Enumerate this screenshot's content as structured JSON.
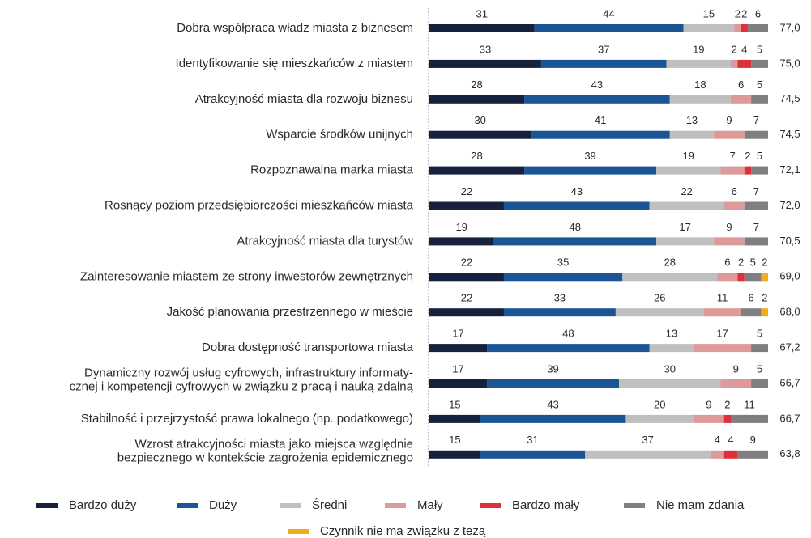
{
  "chart_data": {
    "type": "stacked-bar-horizontal",
    "categories": [
      "Dobra współpraca władz miasta z biznesem",
      "Identyfikowanie się mieszkańców z miastem",
      "Atrakcyjność miasta dla rozwoju biznesu",
      "Wsparcie środków unijnych",
      "Rozpoznawalna marka miasta",
      "Rosnący poziom przedsiębiorczości mieszkańców miasta",
      "Atrakcyjność miasta dla turystów",
      "Zainteresowanie miastem ze strony inwestorów zewnętrznych",
      "Jakość planowania przestrzennego w mieście",
      "Dobra dostępność transportowa miasta",
      "Dynamiczny rozwój usług cyfrowych, infrastruktury informaty-\ncznej i kompetencji cyfrowych w związku z pracą i nauką zdalną",
      "Stabilność i przejrzystość prawa lokalnego (np. podatkowego)",
      "Wzrost atrakcyjności miasta jako miejsca względnie\nbezpiecznego w kontekście zagrożenia epidemicznego"
    ],
    "xlim": [
      0,
      100
    ],
    "series": [
      {
        "name": "Bardzo duży",
        "color": "#16213d",
        "values": [
          31,
          33,
          28,
          30,
          28,
          22,
          19,
          22,
          22,
          17,
          17,
          15,
          15
        ]
      },
      {
        "name": "Duży",
        "color": "#1c5596",
        "values": [
          44,
          37,
          43,
          41,
          39,
          43,
          48,
          35,
          33,
          48,
          39,
          43,
          31
        ]
      },
      {
        "name": "Średni",
        "color": "#bfbfbf",
        "values": [
          15,
          19,
          18,
          13,
          19,
          22,
          17,
          28,
          26,
          13,
          30,
          20,
          37
        ]
      },
      {
        "name": "Mały",
        "color": "#dd9a9a",
        "values": [
          2,
          2,
          6,
          9,
          7,
          6,
          9,
          6,
          11,
          17,
          9,
          9,
          4
        ]
      },
      {
        "name": "Bardzo mały",
        "color": "#de2f3c",
        "values": [
          2,
          4,
          null,
          null,
          2,
          null,
          null,
          2,
          null,
          null,
          null,
          2,
          4
        ]
      },
      {
        "name": "Nie mam zdania",
        "color": "#7f7f7f",
        "values": [
          6,
          5,
          5,
          7,
          5,
          7,
          7,
          5,
          6,
          5,
          5,
          11,
          9
        ]
      },
      {
        "name": "Czynnik nie ma związku z tezą",
        "color": "#f2ac1c",
        "values": [
          null,
          null,
          null,
          null,
          null,
          null,
          null,
          2,
          2,
          null,
          null,
          null,
          null
        ]
      }
    ],
    "scores": [
      77.0,
      75.0,
      74.5,
      74.5,
      72.1,
      72.0,
      70.5,
      69.0,
      68.0,
      67.2,
      66.7,
      66.7,
      63.8
    ],
    "score_labels": [
      "77,0",
      "75,0",
      "74,5",
      "74,5",
      "72,1",
      "72,0",
      "70,5",
      "69,0",
      "68,0",
      "67,2",
      "66,7",
      "66,7",
      "63,8"
    ]
  }
}
